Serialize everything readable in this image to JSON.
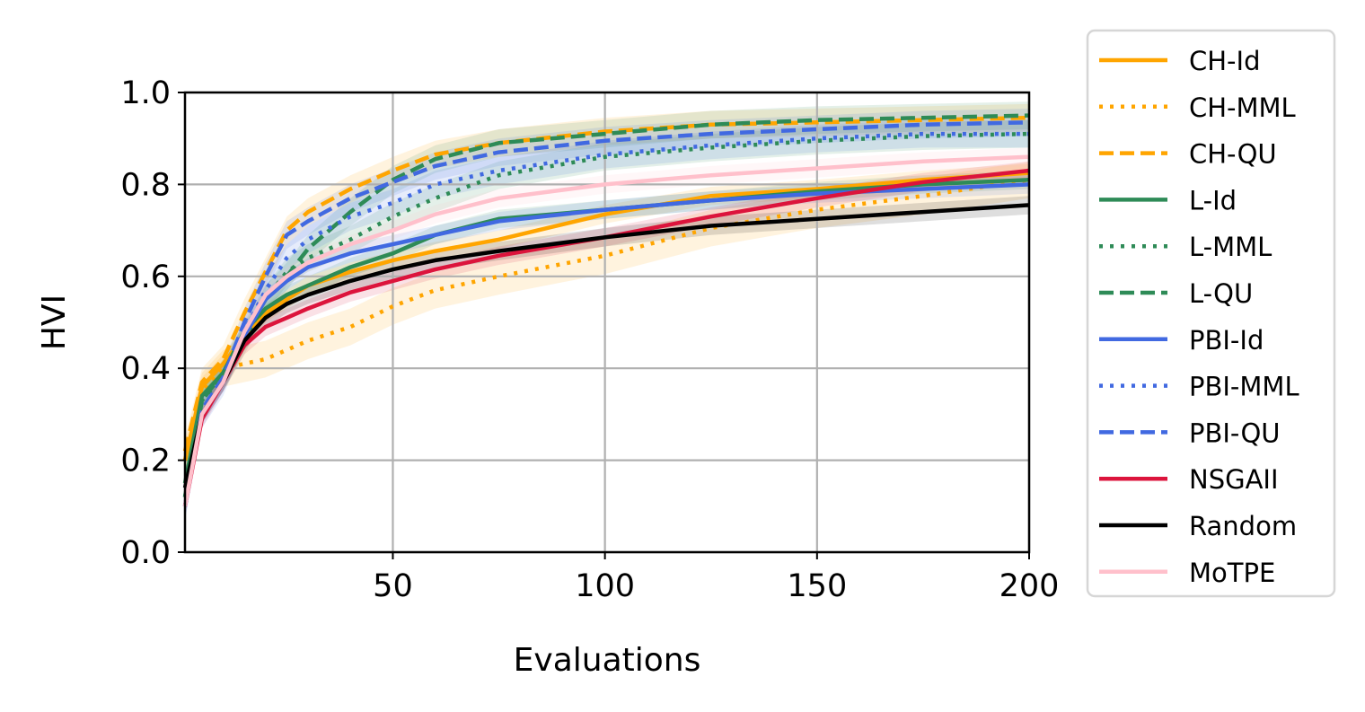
{
  "chart_data": {
    "type": "line",
    "title": "",
    "xlabel": "Evaluations",
    "ylabel": "HVI",
    "xlim": [
      1,
      200
    ],
    "ylim": [
      0.0,
      1.0
    ],
    "grid": true,
    "legend_position": "outside-right",
    "x_ticks": [
      50,
      100,
      150,
      200
    ],
    "x_tick_labels": [
      "50",
      "100",
      "150",
      "200"
    ],
    "y_ticks": [
      0.0,
      0.2,
      0.4,
      0.6,
      0.8,
      1.0
    ],
    "y_tick_labels": [
      "0.0",
      "0.2",
      "0.4",
      "0.6",
      "0.8",
      "1.0"
    ],
    "x": [
      1,
      5,
      10,
      15,
      20,
      25,
      30,
      40,
      50,
      60,
      75,
      100,
      125,
      150,
      175,
      200
    ],
    "series": [
      {
        "name": "CH-Id",
        "color": "#FFA500",
        "style": "solid",
        "values": [
          0.2,
          0.36,
          0.41,
          0.47,
          0.52,
          0.55,
          0.58,
          0.61,
          0.635,
          0.655,
          0.68,
          0.735,
          0.775,
          0.79,
          0.81,
          0.825
        ],
        "band": 0.02
      },
      {
        "name": "CH-MML",
        "color": "#FFA500",
        "style": "dotted",
        "values": [
          0.2,
          0.35,
          0.4,
          0.41,
          0.42,
          0.44,
          0.46,
          0.49,
          0.535,
          0.57,
          0.6,
          0.645,
          0.705,
          0.745,
          0.775,
          0.81
        ],
        "band": 0.04
      },
      {
        "name": "CH-QU",
        "color": "#FFA500",
        "style": "dashed",
        "values": [
          0.22,
          0.37,
          0.42,
          0.52,
          0.61,
          0.7,
          0.74,
          0.79,
          0.83,
          0.865,
          0.89,
          0.915,
          0.93,
          0.935,
          0.94,
          0.945
        ],
        "band": 0.03
      },
      {
        "name": "L-Id",
        "color": "#2E8B57",
        "style": "solid",
        "values": [
          0.15,
          0.34,
          0.39,
          0.48,
          0.53,
          0.56,
          0.58,
          0.62,
          0.65,
          0.69,
          0.725,
          0.745,
          0.765,
          0.785,
          0.8,
          0.81
        ],
        "band": 0.02
      },
      {
        "name": "L-MML",
        "color": "#2E8B57",
        "style": "dotted",
        "values": [
          0.12,
          0.33,
          0.38,
          0.46,
          0.55,
          0.61,
          0.64,
          0.68,
          0.73,
          0.77,
          0.82,
          0.86,
          0.88,
          0.895,
          0.905,
          0.91
        ],
        "band": 0.03
      },
      {
        "name": "L-QU",
        "color": "#2E8B57",
        "style": "dashed",
        "values": [
          0.12,
          0.33,
          0.39,
          0.47,
          0.55,
          0.6,
          0.66,
          0.74,
          0.81,
          0.855,
          0.89,
          0.91,
          0.93,
          0.94,
          0.945,
          0.95
        ],
        "band": 0.03
      },
      {
        "name": "PBI-Id",
        "color": "#4169E1",
        "style": "solid",
        "values": [
          0.1,
          0.3,
          0.37,
          0.47,
          0.55,
          0.59,
          0.62,
          0.65,
          0.67,
          0.69,
          0.72,
          0.745,
          0.765,
          0.78,
          0.79,
          0.8
        ],
        "band": 0.02
      },
      {
        "name": "PBI-MML",
        "color": "#4169E1",
        "style": "dotted",
        "values": [
          0.1,
          0.3,
          0.37,
          0.48,
          0.57,
          0.64,
          0.68,
          0.73,
          0.76,
          0.8,
          0.83,
          0.865,
          0.885,
          0.9,
          0.91,
          0.91
        ],
        "band": 0.03
      },
      {
        "name": "PBI-QU",
        "color": "#4169E1",
        "style": "dashed",
        "values": [
          0.1,
          0.31,
          0.38,
          0.5,
          0.6,
          0.69,
          0.72,
          0.77,
          0.805,
          0.84,
          0.87,
          0.895,
          0.91,
          0.92,
          0.93,
          0.935
        ],
        "band": 0.03
      },
      {
        "name": "NSGAII",
        "color": "#DC143C",
        "style": "solid",
        "values": [
          0.1,
          0.29,
          0.37,
          0.45,
          0.49,
          0.51,
          0.53,
          0.565,
          0.59,
          0.615,
          0.645,
          0.685,
          0.73,
          0.77,
          0.805,
          0.83
        ],
        "band": 0.02
      },
      {
        "name": "Random",
        "color": "#000000",
        "style": "solid",
        "values": [
          0.14,
          0.3,
          0.37,
          0.46,
          0.51,
          0.54,
          0.56,
          0.59,
          0.615,
          0.635,
          0.655,
          0.685,
          0.71,
          0.725,
          0.74,
          0.755
        ],
        "band": 0.02
      },
      {
        "name": "MoTPE",
        "color": "#FFC0CB",
        "style": "solid",
        "values": [
          0.1,
          0.3,
          0.37,
          0.48,
          0.56,
          0.6,
          0.63,
          0.67,
          0.7,
          0.735,
          0.77,
          0.8,
          0.82,
          0.835,
          0.85,
          0.86
        ],
        "band": 0.02
      }
    ]
  }
}
